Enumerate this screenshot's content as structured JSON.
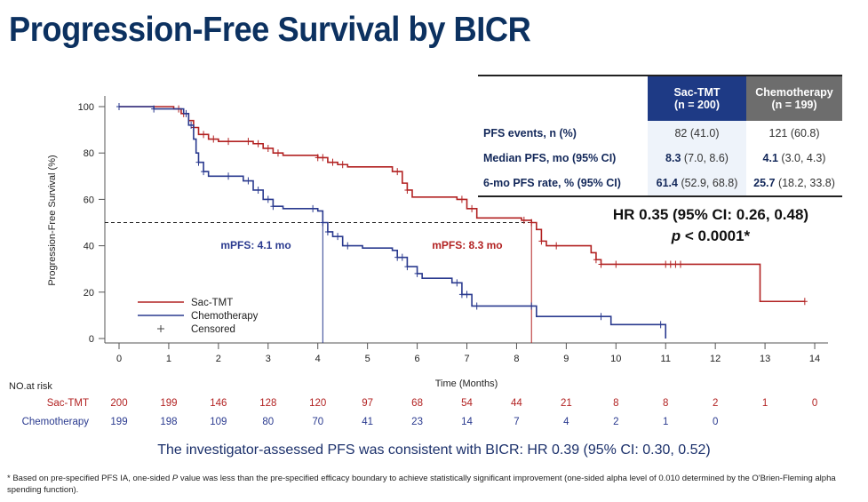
{
  "title": "Progression-Free Survival by BICR",
  "colors": {
    "sac_tmt": "#b22222",
    "chemotherapy": "#2a3a8f",
    "title": "#0c3160",
    "sac_header": "#1e3a85",
    "chemo_header": "#6d6d6d"
  },
  "table": {
    "headers": [
      {
        "line1": "Sac-TMT",
        "line2": "(n = 200)"
      },
      {
        "line1": "Chemotherapy",
        "line2": "(n = 199)"
      }
    ],
    "rows": [
      {
        "label": "PFS events, n (%)",
        "sac_bold": "",
        "sac_rest": "82 (41.0)",
        "chemo_bold": "",
        "chemo_rest": "121 (60.8)"
      },
      {
        "label": "Median PFS, mo (95% CI)",
        "sac_bold": "8.3",
        "sac_rest": " (7.0, 8.6)",
        "chemo_bold": "4.1",
        "chemo_rest": " (3.0, 4.3)"
      },
      {
        "label": "6-mo PFS rate, %  (95% CI)",
        "sac_bold": "61.4",
        "sac_rest": " (52.9, 68.8)",
        "chemo_bold": "25.7",
        "chemo_rest": " (18.2, 33.8)"
      }
    ]
  },
  "hr_line": "HR 0.35 (95% CI: 0.26, 0.48)",
  "p_prefix": "p",
  "p_value": " < 0.0001*",
  "chart_data": {
    "type": "line",
    "subtype": "kaplan-meier step",
    "xlabel": "Time (Months)",
    "ylabel": "Progression-Free Survival (%)",
    "xlim": [
      0,
      14
    ],
    "ylim": [
      0,
      100
    ],
    "xticks": [
      0,
      1,
      2,
      3,
      4,
      5,
      6,
      7,
      8,
      9,
      10,
      11,
      12,
      13,
      14
    ],
    "yticks": [
      0,
      20,
      40,
      60,
      80,
      100
    ],
    "grid": false,
    "legend_placement": "bottom-left",
    "legend": [
      "Sac-TMT",
      "Chemotherapy",
      "Censored"
    ],
    "median_reference_y": 50,
    "annotations": [
      {
        "text": "mPFS: 4.1 mo",
        "x": 4.1,
        "series": "Chemotherapy"
      },
      {
        "text": "mPFS: 8.3 mo",
        "x": 8.3,
        "series": "Sac-TMT"
      }
    ],
    "series": [
      {
        "name": "Sac-TMT",
        "steps": [
          [
            0,
            100
          ],
          [
            1.1,
            99
          ],
          [
            1.25,
            97
          ],
          [
            1.4,
            94
          ],
          [
            1.5,
            91
          ],
          [
            1.6,
            88
          ],
          [
            1.8,
            86
          ],
          [
            2.0,
            85
          ],
          [
            2.7,
            84
          ],
          [
            2.9,
            82
          ],
          [
            3.1,
            80
          ],
          [
            3.3,
            79
          ],
          [
            4.0,
            78
          ],
          [
            4.2,
            76
          ],
          [
            4.4,
            75
          ],
          [
            4.6,
            74
          ],
          [
            5.5,
            72
          ],
          [
            5.7,
            67
          ],
          [
            5.8,
            64
          ],
          [
            5.9,
            61
          ],
          [
            6.8,
            60
          ],
          [
            7.0,
            56
          ],
          [
            7.2,
            52
          ],
          [
            8.1,
            51
          ],
          [
            8.3,
            50
          ],
          [
            8.4,
            47
          ],
          [
            8.5,
            42
          ],
          [
            8.6,
            40
          ],
          [
            9.5,
            37
          ],
          [
            9.6,
            34
          ],
          [
            9.7,
            32
          ],
          [
            12.9,
            16
          ],
          [
            13.8,
            16
          ]
        ],
        "censored": [
          1.2,
          1.3,
          1.5,
          1.7,
          1.9,
          2.2,
          2.6,
          2.8,
          3.0,
          3.2,
          4.0,
          4.1,
          4.3,
          4.5,
          5.6,
          5.8,
          6.9,
          7.1,
          8.15,
          8.3,
          8.5,
          8.8,
          9.6,
          9.7,
          10.0,
          11.0,
          11.1,
          11.2,
          11.3,
          13.8
        ]
      },
      {
        "name": "Chemotherapy",
        "steps": [
          [
            0,
            100
          ],
          [
            0.7,
            99
          ],
          [
            1.3,
            97
          ],
          [
            1.4,
            92
          ],
          [
            1.5,
            86
          ],
          [
            1.55,
            80
          ],
          [
            1.6,
            76
          ],
          [
            1.7,
            72
          ],
          [
            1.8,
            70
          ],
          [
            2.5,
            68
          ],
          [
            2.7,
            64
          ],
          [
            2.9,
            60
          ],
          [
            3.1,
            57
          ],
          [
            3.3,
            56
          ],
          [
            4.0,
            55
          ],
          [
            4.1,
            50
          ],
          [
            4.2,
            46
          ],
          [
            4.3,
            44
          ],
          [
            4.5,
            40
          ],
          [
            4.9,
            39
          ],
          [
            5.5,
            38
          ],
          [
            5.6,
            35
          ],
          [
            5.8,
            31
          ],
          [
            6.0,
            28
          ],
          [
            6.1,
            26
          ],
          [
            6.7,
            24
          ],
          [
            6.9,
            19
          ],
          [
            7.1,
            14
          ],
          [
            8.4,
            9.5
          ],
          [
            9.9,
            6
          ],
          [
            11.0,
            0
          ]
        ],
        "censored": [
          0,
          0.7,
          1.35,
          1.45,
          1.6,
          1.7,
          2.2,
          2.6,
          2.8,
          3.0,
          3.1,
          3.9,
          4.1,
          4.2,
          4.4,
          4.6,
          5.6,
          5.7,
          5.8,
          6.0,
          6.8,
          6.9,
          7.0,
          7.2,
          8.3,
          9.7,
          10.9
        ]
      }
    ],
    "risk_table": {
      "title": "NO.at risk",
      "rows": [
        {
          "name": "Sac-TMT",
          "values": [
            200,
            199,
            146,
            128,
            120,
            97,
            68,
            54,
            44,
            21,
            8,
            8,
            2,
            1,
            0
          ]
        },
        {
          "name": "Chemotherapy",
          "values": [
            199,
            198,
            109,
            80,
            70,
            41,
            23,
            14,
            7,
            4,
            2,
            1,
            0
          ]
        }
      ]
    }
  },
  "consistent_text": "The investigator-assessed PFS was consistent with BICR: HR 0.39 (95% CI: 0.30, 0.52)",
  "footnote": {
    "prefix": "* Based on pre-specified PFS IA, one-sided ",
    "italic": "P",
    "rest": " value was less than the pre-specified efficacy boundary to achieve statistically significant improvement (one-sided alpha level of 0.010 determined by the O'Brien-Fleming alpha spending function)."
  }
}
